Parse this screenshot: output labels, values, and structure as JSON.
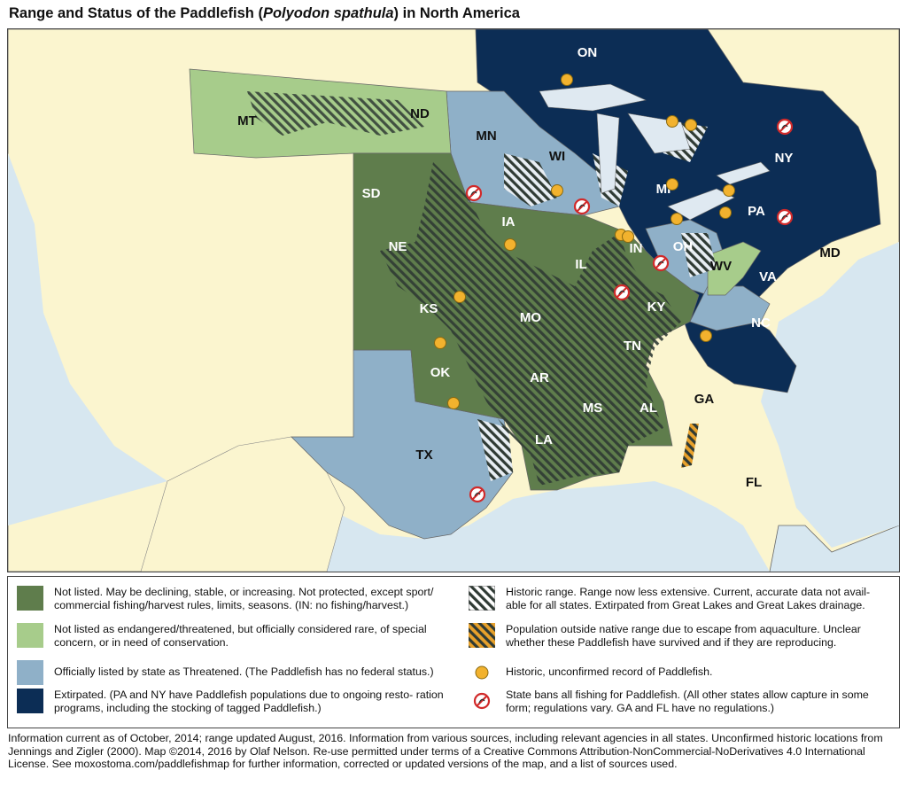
{
  "title": {
    "prefix": "Range and Status of the Paddlefish (",
    "species": "Polyodon spathula",
    "suffix": ") in North America"
  },
  "colors": {
    "not_listed": "#5f7d4c",
    "rare_concern": "#a7cc8b",
    "threatened": "#8fb0c8",
    "extirpated": "#0c2d55",
    "historic_hatch": "#2f3a34",
    "escape_hatch": "#e8a12b",
    "record_dot": "#f2b22e",
    "ban_icon": "#d12a2a",
    "land_other": "#fbf5cf",
    "water": "#d7e7f0"
  },
  "map": {
    "state_labels": [
      {
        "id": "MT",
        "text": "MT"
      },
      {
        "id": "ND",
        "text": "ND"
      },
      {
        "id": "SD",
        "text": "SD"
      },
      {
        "id": "NE",
        "text": "NE"
      },
      {
        "id": "KS",
        "text": "KS"
      },
      {
        "id": "OK",
        "text": "OK"
      },
      {
        "id": "TX",
        "text": "TX"
      },
      {
        "id": "MN",
        "text": "MN"
      },
      {
        "id": "WI",
        "text": "WI"
      },
      {
        "id": "IA",
        "text": "IA"
      },
      {
        "id": "IL",
        "text": "IL"
      },
      {
        "id": "MO",
        "text": "MO"
      },
      {
        "id": "AR",
        "text": "AR"
      },
      {
        "id": "LA",
        "text": "LA"
      },
      {
        "id": "MS",
        "text": "MS"
      },
      {
        "id": "AL",
        "text": "AL"
      },
      {
        "id": "TN",
        "text": "TN"
      },
      {
        "id": "KY",
        "text": "KY"
      },
      {
        "id": "IN",
        "text": "IN"
      },
      {
        "id": "MI",
        "text": "MI"
      },
      {
        "id": "OH",
        "text": "OH"
      },
      {
        "id": "WV",
        "text": "WV"
      },
      {
        "id": "VA",
        "text": "VA"
      },
      {
        "id": "NC",
        "text": "NC"
      },
      {
        "id": "PA",
        "text": "PA"
      },
      {
        "id": "NY",
        "text": "NY"
      },
      {
        "id": "MD",
        "text": "MD"
      },
      {
        "id": "ON",
        "text": "ON"
      },
      {
        "id": "GA",
        "text": "GA"
      },
      {
        "id": "FL",
        "text": "FL"
      }
    ]
  },
  "legend": {
    "not_listed": "Not listed. May be declining, stable, or increasing. Not protected, except sport/ commercial fishing/harvest rules, limits, seasons. (IN: no fishing/harvest.)",
    "rare_concern": "Not listed as endangered/threatened, but officially considered rare, of special concern, or in need of conservation.",
    "threatened": "Officially listed by state as Threatened. (The Paddlefish has no federal status.)",
    "extirpated": "Extirpated. (PA and NY have Paddlefish populations due to ongoing resto- ration programs, including the stocking of tagged Paddlefish.)",
    "historic": "Historic range. Range now less extensive. Current, accurate data not avail- able for all states. Extirpated from Great Lakes and Great Lakes drainage.",
    "escape": "Population outside native range due to escape from aquaculture.  Unclear whether these Paddlefish have survived and if they are reproducing.",
    "record": "Historic, unconfirmed record of Paddlefish.",
    "ban": "State bans all fishing for Paddlefish. (All other states allow capture in some form; regulations vary. GA and FL have no regulations.)"
  },
  "footer": "Information current as of October, 2014; range updated August, 2016. Information from various sources, including relevant agencies in all states. Unconfirmed historic locations from Jennings and Zigler (2000). Map ©2014, 2016 by Olaf Nelson. Re-use permitted under terms of a Creative Commons Attribution-NonCommercial-NoDerivatives 4.0 International License. See moxostoma.com/paddlefishmap for further information, corrected or updated versions of the map, and a list of sources used."
}
